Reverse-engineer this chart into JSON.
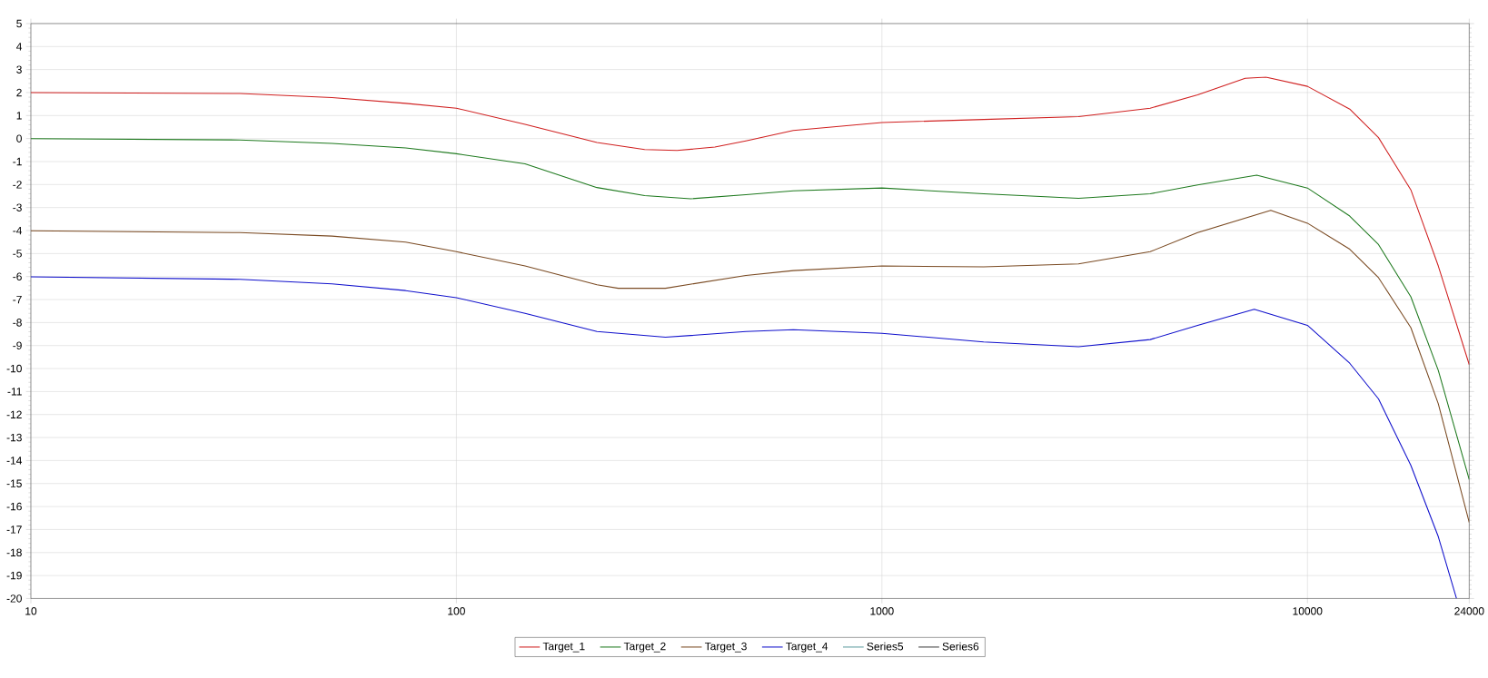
{
  "chart_data": {
    "type": "line",
    "log": "x",
    "grid": true,
    "legend": "bottom",
    "marker": "none",
    "line_style": "solid",
    "xlim": [
      10,
      24000
    ],
    "xticks": [
      10,
      100,
      1000,
      10000,
      24000
    ],
    "ylim": [
      -20,
      5
    ],
    "yticks": [
      -20,
      -19,
      -18,
      -17,
      -16,
      -15,
      -14,
      -13,
      -12,
      -11,
      -10,
      -9,
      -8,
      -7,
      -6,
      -5,
      -4,
      -3,
      -2,
      -1,
      0,
      1,
      2,
      3,
      4,
      5
    ],
    "series": [
      {
        "name": "Target_1",
        "color": "#d02020",
        "x": [
          10,
          31,
          51,
          76,
          100,
          145,
          214,
          277,
          330,
          405,
          479,
          619,
          1000,
          1734,
          2897,
          4270,
          5520,
          7140,
          7990,
          10000,
          12570,
          14690,
          17500,
          20300,
          24000
        ],
        "values": [
          2.0,
          1.96,
          1.78,
          1.53,
          1.32,
          0.62,
          -0.17,
          -0.48,
          -0.52,
          -0.37,
          -0.1,
          0.35,
          0.7,
          0.83,
          0.95,
          1.32,
          1.9,
          2.62,
          2.67,
          2.27,
          1.28,
          0.04,
          -2.23,
          -5.54,
          -9.83
        ]
      },
      {
        "name": "Target_2",
        "color": "#1f7a1f",
        "x": [
          10,
          31,
          51,
          76,
          100,
          145,
          214,
          277,
          355,
          479,
          619,
          1000,
          1734,
          2897,
          4270,
          5520,
          7600,
          10000,
          12570,
          14690,
          17500,
          20300,
          24000
        ],
        "values": [
          0.0,
          -0.06,
          -0.21,
          -0.41,
          -0.66,
          -1.1,
          -2.13,
          -2.48,
          -2.62,
          -2.44,
          -2.27,
          -2.15,
          -2.4,
          -2.6,
          -2.4,
          -2.02,
          -1.59,
          -2.15,
          -3.37,
          -4.61,
          -6.88,
          -10.08,
          -14.83
        ]
      },
      {
        "name": "Target_3",
        "color": "#7a4a22",
        "x": [
          10,
          31,
          51,
          76,
          100,
          145,
          214,
          240,
          310,
          479,
          619,
          1000,
          1734,
          2897,
          4270,
          5520,
          8200,
          10000,
          12570,
          14690,
          17500,
          20300,
          24000
        ],
        "values": [
          -4.01,
          -4.09,
          -4.24,
          -4.5,
          -4.92,
          -5.54,
          -6.36,
          -6.51,
          -6.51,
          -5.95,
          -5.74,
          -5.54,
          -5.58,
          -5.45,
          -4.92,
          -4.09,
          -3.12,
          -3.68,
          -4.81,
          -6.05,
          -8.22,
          -11.53,
          -16.69
        ]
      },
      {
        "name": "Target_4",
        "color": "#1010cc",
        "x": [
          10,
          31,
          51,
          76,
          100,
          145,
          214,
          310,
          479,
          619,
          1000,
          1734,
          2897,
          4270,
          5520,
          7500,
          10000,
          12570,
          14690,
          17500,
          20300,
          22400
        ],
        "values": [
          -6.01,
          -6.12,
          -6.32,
          -6.61,
          -6.92,
          -7.6,
          -8.39,
          -8.64,
          -8.39,
          -8.31,
          -8.47,
          -8.84,
          -9.05,
          -8.74,
          -8.12,
          -7.42,
          -8.12,
          -9.77,
          -11.32,
          -14.21,
          -17.31,
          -20
        ]
      },
      {
        "name": "Series5",
        "color": "#5f9ea0"
      },
      {
        "name": "Series6",
        "color": "#404040"
      }
    ]
  }
}
